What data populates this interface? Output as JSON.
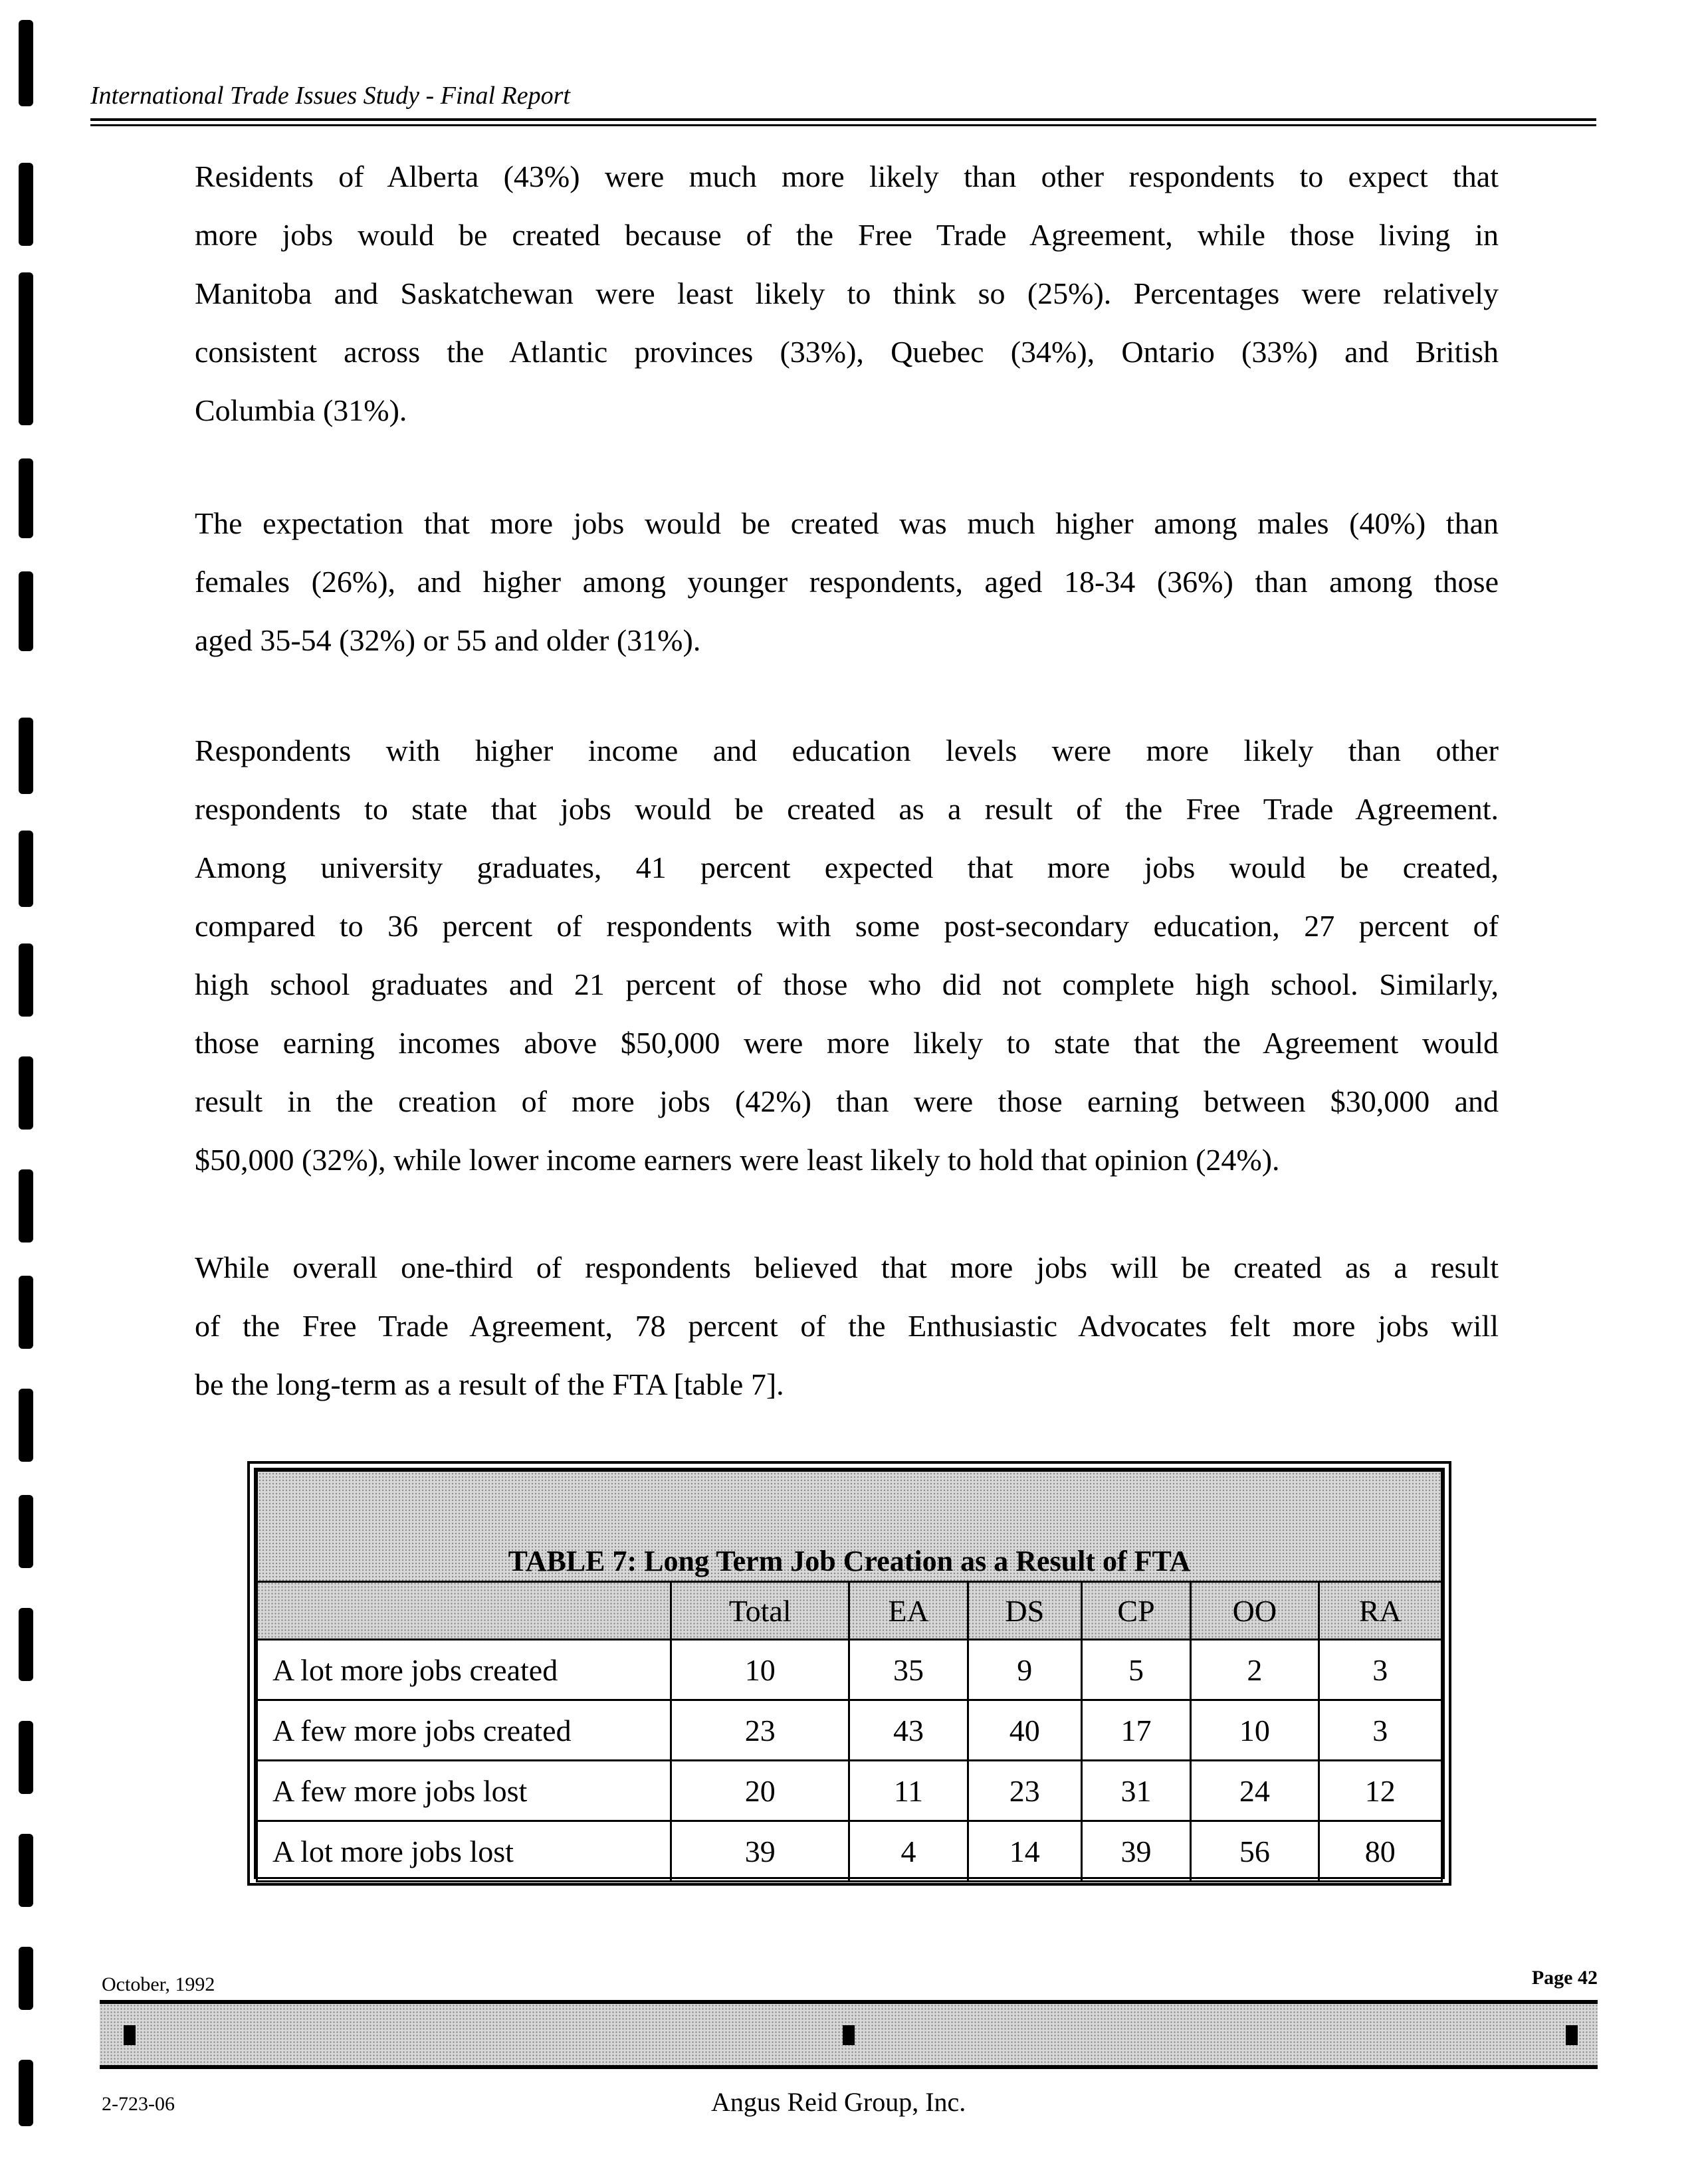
{
  "header": {
    "title": "International Trade Issues Study - Final Report"
  },
  "paragraphs": [
    {
      "lines": [
        "Residents of Alberta (43%) were much more likely than other respondents to expect that",
        "more jobs would be created because of the Free Trade Agreement, while those living in",
        "Manitoba and Saskatchewan were least likely to think so (25%). Percentages were relatively",
        "consistent across the Atlantic provinces (33%), Quebec (34%), Ontario (33%) and British",
        "Columbia (31%)."
      ]
    },
    {
      "lines": [
        "The expectation that more jobs would be created was much higher among males (40%) than",
        "females (26%), and higher among younger respondents, aged 18-34 (36%) than among those",
        "aged 35-54 (32%) or 55 and older (31%)."
      ]
    },
    {
      "lines": [
        "Respondents with higher income and education levels were more likely than other",
        "respondents to state that jobs would be created as a result of the Free Trade Agreement.",
        "Among university graduates, 41 percent expected that more jobs would be created,",
        "compared to 36 percent of respondents with some post-secondary education, 27 percent of",
        "high school graduates and 21 percent of those who did not complete high school. Similarly,",
        "those earning incomes above $50,000 were more likely to state that the Agreement would",
        "result in the creation of more jobs (42%) than were those earning between $30,000 and",
        "$50,000 (32%), while lower income earners were least likely to hold that opinion (24%)."
      ]
    },
    {
      "lines": [
        "While overall one-third of respondents believed that more jobs will be created as a result",
        "of the Free Trade Agreement, 78 percent of the Enthusiastic Advocates felt more jobs will",
        "be the long-term as a result of the FTA [table 7]."
      ]
    }
  ],
  "table": {
    "title": "TABLE 7:  Long Term Job Creation as a Result of FTA",
    "columns": [
      "Total",
      "EA",
      "DS",
      "CP",
      "OO",
      "RA"
    ],
    "rows": [
      {
        "label": "A lot more jobs created",
        "values": [
          "10",
          "35",
          "9",
          "5",
          "2",
          "3"
        ]
      },
      {
        "label": "A few more jobs created",
        "values": [
          "23",
          "43",
          "40",
          "17",
          "10",
          "3"
        ]
      },
      {
        "label": "A few more jobs lost",
        "values": [
          "20",
          "11",
          "23",
          "31",
          "24",
          "12"
        ]
      },
      {
        "label": "A lot more jobs lost",
        "values": [
          "39",
          "4",
          "14",
          "39",
          "56",
          "80"
        ]
      }
    ]
  },
  "footer": {
    "date": "October, 1992",
    "page": "Page 42",
    "code": "2-723-06",
    "company": "Angus Reid Group, Inc."
  }
}
